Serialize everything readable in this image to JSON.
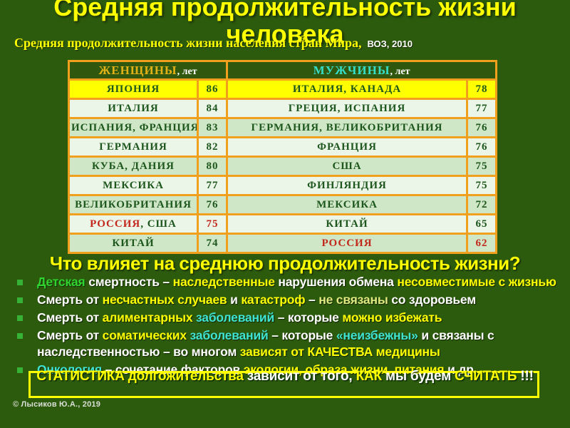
{
  "palette": {
    "background": "#2d5b0d",
    "title_yellow": "#ffff00",
    "table_border_orange": "#f0a01c",
    "header_background": "#2f570e",
    "header_women_gold": "#e2b117",
    "header_men_cyan": "#35dcc8",
    "row_yellow": "#ffff00",
    "row_light_green": "#ebf5e8",
    "row_mint_green": "#cfe7c6",
    "table_text_dark_green": "#1d571d",
    "russia_red": "#c2281c",
    "bullet_square_green": "#36b336",
    "text_bright_green": "#2fd42f",
    "text_cyan": "#3fe3d2",
    "text_pale_yellow": "#dfe97f",
    "text_white": "#ffffff"
  },
  "title": {
    "line1": "Средняя продолжительность жизни",
    "line2": "человека"
  },
  "subtitle": {
    "text1": "Средняя продолжительность жизни населения стран",
    "footnote": "5",
    "text2": " Мира,",
    "source": "ВОЗ, 2010"
  },
  "table": {
    "headers": [
      {
        "name": "ЖЕНЩИНЫ",
        "unit": ", лет"
      },
      {
        "name": "МУЖЧИНЫ",
        "unit": ", лет"
      }
    ],
    "rows": [
      {
        "bg": "yellow",
        "cells": [
          [
            {
              "t": "ЯПОНИЯ",
              "c": "dark"
            }
          ],
          [
            {
              "t": "86",
              "c": "dark"
            }
          ],
          [
            {
              "t": "ИТАЛИЯ, КАНАДА",
              "c": "dark"
            }
          ],
          [
            {
              "t": "78",
              "c": "dark"
            }
          ]
        ]
      },
      {
        "bg": "light",
        "cells": [
          [
            {
              "t": "ИТАЛИЯ",
              "c": "dark"
            }
          ],
          [
            {
              "t": "84",
              "c": "dark"
            }
          ],
          [
            {
              "t": "ГРЕЦИЯ, ИСПАНИЯ",
              "c": "dark"
            }
          ],
          [
            {
              "t": "77",
              "c": "dark"
            }
          ]
        ]
      },
      {
        "bg": "mint",
        "cells": [
          [
            {
              "t": "ИСПАНИЯ, ФРАНЦИЯ",
              "c": "dark"
            }
          ],
          [
            {
              "t": "83",
              "c": "dark"
            }
          ],
          [
            {
              "t": "ГЕРМАНИЯ, ВЕЛИКОБРИТАНИЯ",
              "c": "dark"
            }
          ],
          [
            {
              "t": "76",
              "c": "dark"
            }
          ]
        ]
      },
      {
        "bg": "light",
        "cells": [
          [
            {
              "t": "ГЕРМАНИЯ",
              "c": "dark"
            }
          ],
          [
            {
              "t": "82",
              "c": "dark"
            }
          ],
          [
            {
              "t": "ФРАНЦИЯ",
              "c": "dark"
            }
          ],
          [
            {
              "t": "76",
              "c": "dark"
            }
          ]
        ]
      },
      {
        "bg": "mint",
        "cells": [
          [
            {
              "t": "КУБА,  ДАНИЯ",
              "c": "dark"
            }
          ],
          [
            {
              "t": "80",
              "c": "dark"
            }
          ],
          [
            {
              "t": "США",
              "c": "dark"
            }
          ],
          [
            {
              "t": "75",
              "c": "dark"
            }
          ]
        ]
      },
      {
        "bg": "light",
        "cells": [
          [
            {
              "t": "МЕКСИКА",
              "c": "dark"
            }
          ],
          [
            {
              "t": "77",
              "c": "dark"
            }
          ],
          [
            {
              "t": "ФИНЛЯНДИЯ",
              "c": "dark"
            }
          ],
          [
            {
              "t": "75",
              "c": "dark"
            }
          ]
        ]
      },
      {
        "bg": "mint",
        "cells": [
          [
            {
              "t": "ВЕЛИКОБРИТАНИЯ",
              "c": "dark"
            }
          ],
          [
            {
              "t": "76",
              "c": "dark"
            }
          ],
          [
            {
              "t": "МЕКСИКА",
              "c": "dark"
            }
          ],
          [
            {
              "t": "72",
              "c": "dark"
            }
          ]
        ]
      },
      {
        "bg": "light",
        "cells": [
          [
            {
              "t": "РОССИЯ",
              "c": "red"
            },
            {
              "t": ", США",
              "c": "dark"
            }
          ],
          [
            {
              "t": "75",
              "c": "red"
            }
          ],
          [
            {
              "t": "КИТАЙ",
              "c": "dark"
            }
          ],
          [
            {
              "t": "65",
              "c": "dark"
            }
          ]
        ]
      },
      {
        "bg": "mint",
        "cells": [
          [
            {
              "t": "КИТАЙ",
              "c": "dark"
            }
          ],
          [
            {
              "t": "74",
              "c": "dark"
            }
          ],
          [
            {
              "t": "РОССИЯ",
              "c": "red"
            }
          ],
          [
            {
              "t": "62",
              "c": "red"
            }
          ]
        ]
      }
    ]
  },
  "question": "Что влияет на среднюю продолжительность жизни?",
  "bullets": [
    {
      "segments": [
        {
          "t": "Детская ",
          "c": "green"
        },
        {
          "t": "смертность – ",
          "c": "white"
        },
        {
          "t": "наследственные ",
          "c": "yellow"
        },
        {
          "t": "нарушения обмена ",
          "c": "white"
        },
        {
          "t": "несовместимые с жизнью",
          "c": "yellow"
        }
      ]
    },
    {
      "segments": [
        {
          "t": "Смерть от ",
          "c": "white"
        },
        {
          "t": "несчастных случаев ",
          "c": "yellow"
        },
        {
          "t": "и ",
          "c": "white"
        },
        {
          "t": "катастроф ",
          "c": "yellow"
        },
        {
          "t": "– ",
          "c": "white"
        },
        {
          "t": "не связаны ",
          "c": "pale"
        },
        {
          "t": "со здоровьем",
          "c": "white"
        }
      ]
    },
    {
      "segments": [
        {
          "t": "Смерть от ",
          "c": "white"
        },
        {
          "t": "алиментарных ",
          "c": "yellow"
        },
        {
          "t": "заболеваний ",
          "c": "cyan"
        },
        {
          "t": "– которые ",
          "c": "white"
        },
        {
          "t": "можно избежать",
          "c": "yellow"
        }
      ]
    },
    {
      "segments": [
        {
          "t": "Смерть от ",
          "c": "white"
        },
        {
          "t": "соматических ",
          "c": "yellow"
        },
        {
          "t": "заболеваний ",
          "c": "cyan"
        },
        {
          "t": "– которые ",
          "c": "white"
        },
        {
          "t": "«неизбежны» ",
          "c": "cyan"
        },
        {
          "t": "и связаны с наследственностью – во многом ",
          "c": "white"
        },
        {
          "t": "зависят от КАЧЕСТВА медицины",
          "c": "yellow"
        }
      ]
    },
    {
      "segments": [
        {
          "t": "Онкология ",
          "c": "cyan"
        },
        {
          "t": "– сочетание факторов ",
          "c": "white"
        },
        {
          "t": "экологии, образа жизни, питания ",
          "c": "yellow"
        },
        {
          "t": "и др.",
          "c": "white"
        }
      ]
    }
  ],
  "statistics": {
    "segments": [
      {
        "t": "СТАТИСТИКА долгожительства ",
        "c": "yellow"
      },
      {
        "t": "зависит от того, ",
        "c": "white"
      },
      {
        "t": "КАК ",
        "c": "yellow"
      },
      {
        "t": "мы будем ",
        "c": "white"
      },
      {
        "t": "СЧИТАТЬ ",
        "c": "yellow"
      },
      {
        "t": "!!!",
        "c": "white"
      }
    ]
  },
  "copyright": "© Лысиков Ю.А., 2019"
}
